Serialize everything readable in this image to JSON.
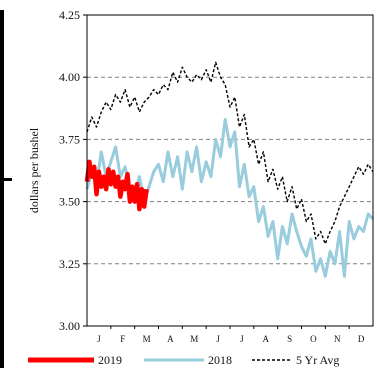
{
  "chart_data": {
    "type": "line",
    "title": "",
    "xlabel": "",
    "ylabel": "dollars per bushel",
    "ylim": [
      3.0,
      4.25
    ],
    "y_ticks": [
      "3.00",
      "3.25",
      "3.50",
      "3.75",
      "4.00",
      "4.25"
    ],
    "y_tick_values": [
      3.0,
      3.25,
      3.5,
      3.75,
      4.0,
      4.25
    ],
    "months": [
      "J",
      "F",
      "M",
      "A",
      "M",
      "J",
      "J",
      "A",
      "S",
      "O",
      "N",
      "D"
    ],
    "grid": "horizontal dashed",
    "legend_position": "bottom",
    "series": [
      {
        "name": "2019",
        "color": "#ff0000",
        "style": "solid-thick",
        "x": [
          0.0,
          0.1,
          0.2,
          0.3,
          0.4,
          0.5,
          0.6,
          0.7,
          0.8,
          0.9,
          1.0,
          1.1,
          1.2,
          1.3,
          1.4,
          1.5,
          1.6,
          1.7,
          1.8,
          1.9,
          2.0,
          2.1,
          2.2,
          2.3,
          2.4,
          2.5
        ],
        "y": [
          3.58,
          3.66,
          3.6,
          3.64,
          3.53,
          3.62,
          3.56,
          3.6,
          3.55,
          3.63,
          3.57,
          3.62,
          3.56,
          3.6,
          3.52,
          3.58,
          3.55,
          3.61,
          3.5,
          3.56,
          3.5,
          3.57,
          3.47,
          3.55,
          3.48,
          3.55
        ]
      },
      {
        "name": "2018",
        "color": "#99ccdd",
        "style": "solid",
        "x": [
          0.0,
          0.2,
          0.4,
          0.6,
          0.8,
          1.0,
          1.2,
          1.4,
          1.6,
          1.8,
          2.0,
          2.2,
          2.4,
          2.6,
          2.8,
          3.0,
          3.2,
          3.4,
          3.6,
          3.8,
          4.0,
          4.2,
          4.4,
          4.6,
          4.8,
          5.0,
          5.2,
          5.4,
          5.6,
          5.8,
          6.0,
          6.2,
          6.4,
          6.6,
          6.8,
          7.0,
          7.2,
          7.4,
          7.6,
          7.8,
          8.0,
          8.2,
          8.4,
          8.6,
          8.8,
          9.0,
          9.2,
          9.4,
          9.6,
          9.8,
          10.0,
          10.2,
          10.4,
          10.6,
          10.8,
          11.0,
          11.2,
          11.4,
          11.6,
          11.8,
          12.0
        ],
        "y": [
          3.55,
          3.62,
          3.57,
          3.7,
          3.6,
          3.66,
          3.72,
          3.6,
          3.64,
          3.56,
          3.53,
          3.6,
          3.5,
          3.56,
          3.62,
          3.65,
          3.58,
          3.7,
          3.6,
          3.68,
          3.55,
          3.7,
          3.62,
          3.72,
          3.58,
          3.66,
          3.6,
          3.75,
          3.68,
          3.83,
          3.72,
          3.78,
          3.56,
          3.65,
          3.52,
          3.56,
          3.42,
          3.48,
          3.36,
          3.42,
          3.27,
          3.4,
          3.33,
          3.45,
          3.38,
          3.32,
          3.28,
          3.35,
          3.22,
          3.27,
          3.2,
          3.3,
          3.25,
          3.38,
          3.2,
          3.42,
          3.35,
          3.4,
          3.38,
          3.45,
          3.43
        ]
      },
      {
        "name": "5 Yr Avg",
        "color": "#000000",
        "style": "dashed",
        "x": [
          0.0,
          0.2,
          0.4,
          0.6,
          0.8,
          1.0,
          1.2,
          1.4,
          1.6,
          1.8,
          2.0,
          2.2,
          2.4,
          2.6,
          2.8,
          3.0,
          3.2,
          3.4,
          3.6,
          3.8,
          4.0,
          4.2,
          4.4,
          4.6,
          4.8,
          5.0,
          5.2,
          5.4,
          5.6,
          5.8,
          6.0,
          6.2,
          6.4,
          6.6,
          6.8,
          7.0,
          7.2,
          7.4,
          7.6,
          7.8,
          8.0,
          8.2,
          8.4,
          8.6,
          8.8,
          9.0,
          9.2,
          9.4,
          9.6,
          9.8,
          10.0,
          10.2,
          10.4,
          10.6,
          10.8,
          11.0,
          11.2,
          11.4,
          11.6,
          11.8,
          12.0
        ],
        "y": [
          3.78,
          3.84,
          3.8,
          3.86,
          3.9,
          3.87,
          3.93,
          3.9,
          3.95,
          3.88,
          3.92,
          3.86,
          3.9,
          3.92,
          3.95,
          3.93,
          3.97,
          3.95,
          4.02,
          3.98,
          4.04,
          4.0,
          3.98,
          4.01,
          3.99,
          4.03,
          3.98,
          4.06,
          4.0,
          3.97,
          3.88,
          3.92,
          3.8,
          3.85,
          3.72,
          3.75,
          3.65,
          3.7,
          3.58,
          3.63,
          3.55,
          3.6,
          3.5,
          3.56,
          3.47,
          3.51,
          3.42,
          3.45,
          3.35,
          3.38,
          3.33,
          3.38,
          3.42,
          3.48,
          3.52,
          3.56,
          3.6,
          3.64,
          3.61,
          3.65,
          3.62
        ]
      }
    ]
  }
}
